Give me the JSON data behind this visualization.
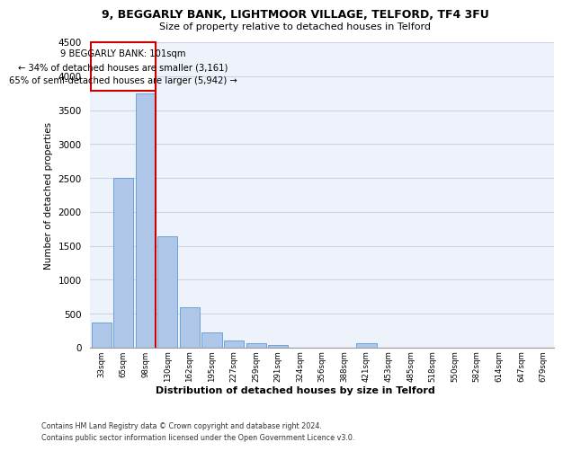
{
  "title1": "9, BEGGARLY BANK, LIGHTMOOR VILLAGE, TELFORD, TF4 3FU",
  "title2": "Size of property relative to detached houses in Telford",
  "xlabel": "Distribution of detached houses by size in Telford",
  "ylabel": "Number of detached properties",
  "bar_color": "#aec6e8",
  "bar_edge_color": "#5b9bd5",
  "categories": [
    "33sqm",
    "65sqm",
    "98sqm",
    "130sqm",
    "162sqm",
    "195sqm",
    "227sqm",
    "259sqm",
    "291sqm",
    "324sqm",
    "356sqm",
    "388sqm",
    "421sqm",
    "453sqm",
    "485sqm",
    "518sqm",
    "550sqm",
    "582sqm",
    "614sqm",
    "647sqm",
    "679sqm"
  ],
  "values": [
    370,
    2500,
    3750,
    1640,
    590,
    220,
    105,
    60,
    45,
    0,
    0,
    0,
    65,
    0,
    0,
    0,
    0,
    0,
    0,
    0,
    0
  ],
  "annotation_line1": "9 BEGGARLY BANK: 101sqm",
  "annotation_line2": "← 34% of detached houses are smaller (3,161)",
  "annotation_line3": "65% of semi-detached houses are larger (5,942) →",
  "annotation_color": "#cc0000",
  "vline_bin_index": 2,
  "ylim": [
    0,
    4500
  ],
  "yticks": [
    0,
    500,
    1000,
    1500,
    2000,
    2500,
    3000,
    3500,
    4000,
    4500
  ],
  "footer1": "Contains HM Land Registry data © Crown copyright and database right 2024.",
  "footer2": "Contains public sector information licensed under the Open Government Licence v3.0.",
  "bg_color": "#eef2fa",
  "grid_color": "#c8d4e8",
  "fig_width": 6.0,
  "fig_height": 5.0
}
